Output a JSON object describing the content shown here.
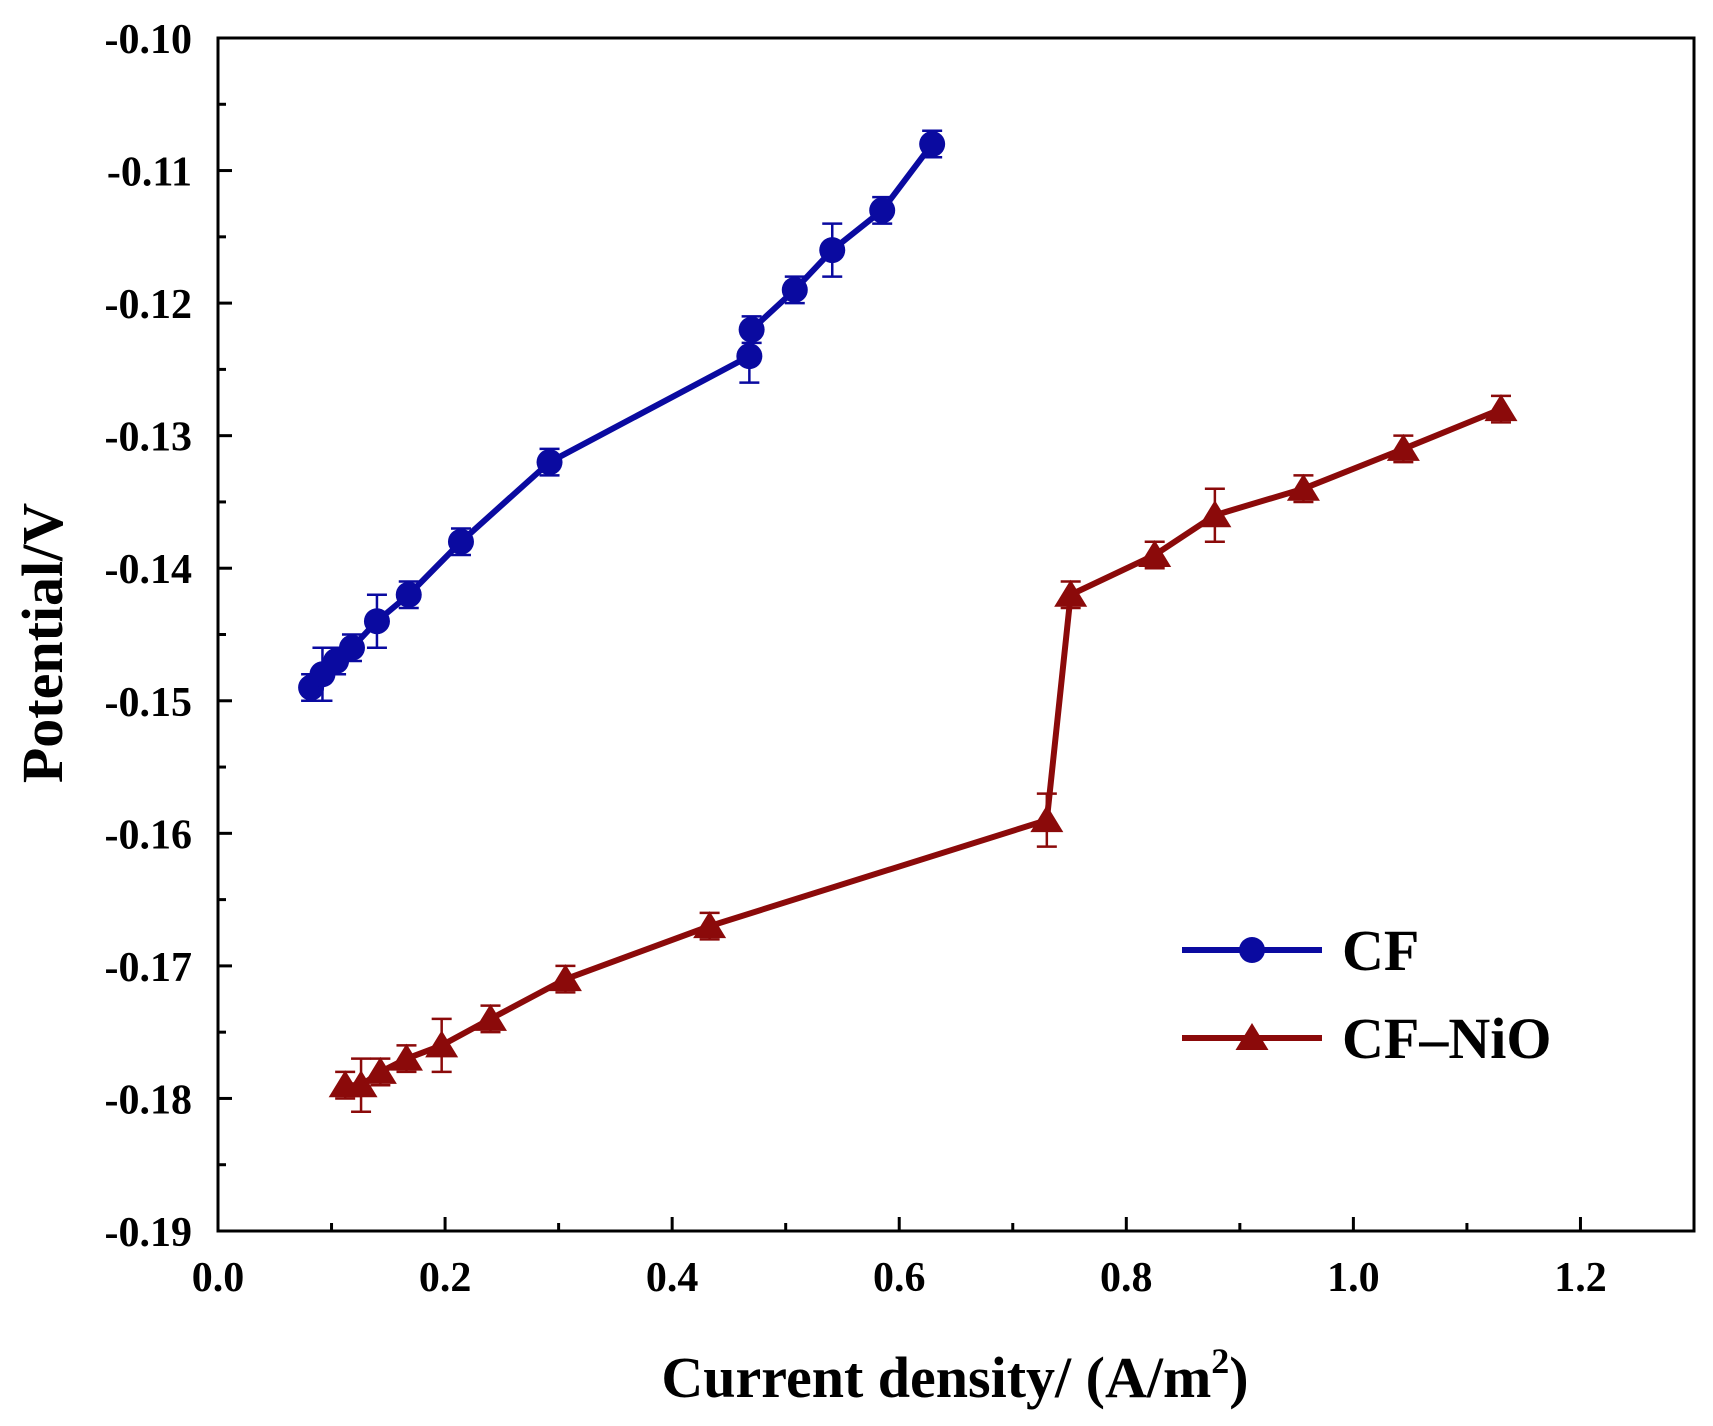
{
  "chart_data": {
    "type": "line",
    "title": "",
    "xlabel": "Current density/ (A/m",
    "xlabel_superscript": "2",
    "xlabel_suffix": ")",
    "ylabel": "Potential/V",
    "xlim": [
      0.0,
      1.3
    ],
    "ylim": [
      -0.19,
      -0.1
    ],
    "x_ticks": [
      0.0,
      0.2,
      0.4,
      0.6,
      0.8,
      1.0,
      1.2
    ],
    "x_tick_labels": [
      "0.0",
      "0.2",
      "0.4",
      "0.6",
      "0.8",
      "1.0",
      "1.2"
    ],
    "x_minor_ticks": [
      0.1,
      0.3,
      0.5,
      0.7,
      0.9,
      1.1
    ],
    "y_ticks": [
      -0.1,
      -0.11,
      -0.12,
      -0.13,
      -0.14,
      -0.15,
      -0.16,
      -0.17,
      -0.18,
      -0.19
    ],
    "y_tick_labels": [
      "-0.10",
      "-0.11",
      "-0.12",
      "-0.13",
      "-0.14",
      "-0.15",
      "-0.16",
      "-0.17",
      "-0.18",
      "-0.19"
    ],
    "y_minor_ticks": [
      -0.105,
      -0.115,
      -0.125,
      -0.135,
      -0.145,
      -0.155,
      -0.165,
      -0.175,
      -0.185
    ],
    "grid": false,
    "legend_position": "bottom-right",
    "series": [
      {
        "name": "CF",
        "color": "#0a0aa0",
        "marker": "circle",
        "points": [
          {
            "x": 0.082,
            "y": -0.149,
            "err": 0.001
          },
          {
            "x": 0.092,
            "y": -0.148,
            "err": 0.002
          },
          {
            "x": 0.104,
            "y": -0.147,
            "err": 0.001
          },
          {
            "x": 0.118,
            "y": -0.146,
            "err": 0.001
          },
          {
            "x": 0.14,
            "y": -0.144,
            "err": 0.002
          },
          {
            "x": 0.168,
            "y": -0.142,
            "err": 0.001
          },
          {
            "x": 0.214,
            "y": -0.138,
            "err": 0.001
          },
          {
            "x": 0.292,
            "y": -0.132,
            "err": 0.001
          },
          {
            "x": 0.468,
            "y": -0.124,
            "err": 0.002
          },
          {
            "x": 0.47,
            "y": -0.122,
            "err": 0.001
          },
          {
            "x": 0.508,
            "y": -0.119,
            "err": 0.001
          },
          {
            "x": 0.541,
            "y": -0.116,
            "err": 0.002
          },
          {
            "x": 0.585,
            "y": -0.113,
            "err": 0.001
          },
          {
            "x": 0.629,
            "y": -0.108,
            "err": 0.001
          }
        ]
      },
      {
        "name": "CF–NiO",
        "color": "#8b0a0a",
        "marker": "triangle",
        "points": [
          {
            "x": 0.112,
            "y": -0.179,
            "err": 0.001
          },
          {
            "x": 0.126,
            "y": -0.179,
            "err": 0.002
          },
          {
            "x": 0.143,
            "y": -0.178,
            "err": 0.001
          },
          {
            "x": 0.166,
            "y": -0.177,
            "err": 0.001
          },
          {
            "x": 0.197,
            "y": -0.176,
            "err": 0.002
          },
          {
            "x": 0.24,
            "y": -0.174,
            "err": 0.001
          },
          {
            "x": 0.306,
            "y": -0.171,
            "err": 0.001
          },
          {
            "x": 0.433,
            "y": -0.167,
            "err": 0.001
          },
          {
            "x": 0.73,
            "y": -0.159,
            "err": 0.002
          },
          {
            "x": 0.751,
            "y": -0.142,
            "err": 0.001
          },
          {
            "x": 0.825,
            "y": -0.139,
            "err": 0.001
          },
          {
            "x": 0.878,
            "y": -0.136,
            "err": 0.002
          },
          {
            "x": 0.956,
            "y": -0.134,
            "err": 0.001
          },
          {
            "x": 1.044,
            "y": -0.131,
            "err": 0.001
          },
          {
            "x": 1.13,
            "y": -0.128,
            "err": 0.001
          }
        ]
      }
    ]
  }
}
